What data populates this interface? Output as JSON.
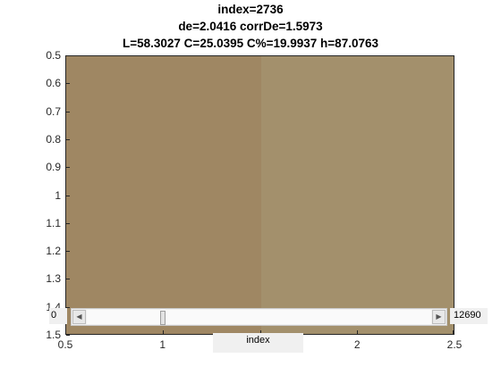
{
  "title": {
    "line1": "index=2736",
    "line2": "de=2.0416 corrDe=1.5973",
    "line3": "L=58.3027 C=25.0395 C%=19.9937 h=87.0763"
  },
  "colors": {
    "patch_left": "#9f8763",
    "patch_right": "#a3906c",
    "axes_border": "#262626"
  },
  "axes": {
    "yticks": [
      "0.5",
      "0.6",
      "0.7",
      "0.8",
      "0.9",
      "1",
      "1.1",
      "1.2",
      "1.3",
      "1.4",
      "1.5"
    ],
    "xticks": [
      "0.5",
      "1",
      "1.5",
      "2",
      "2.5"
    ],
    "xlim": [
      0.5,
      2.5
    ],
    "ylim": [
      0.5,
      1.5
    ],
    "patch_split_x": 1.5
  },
  "slider": {
    "min_label": "0",
    "max_label": "12690",
    "min": 0,
    "max": 12690,
    "value": 2736,
    "left_arrow_icon": "chevron-left-icon",
    "right_arrow_icon": "chevron-right-icon"
  },
  "index_label": "index"
}
